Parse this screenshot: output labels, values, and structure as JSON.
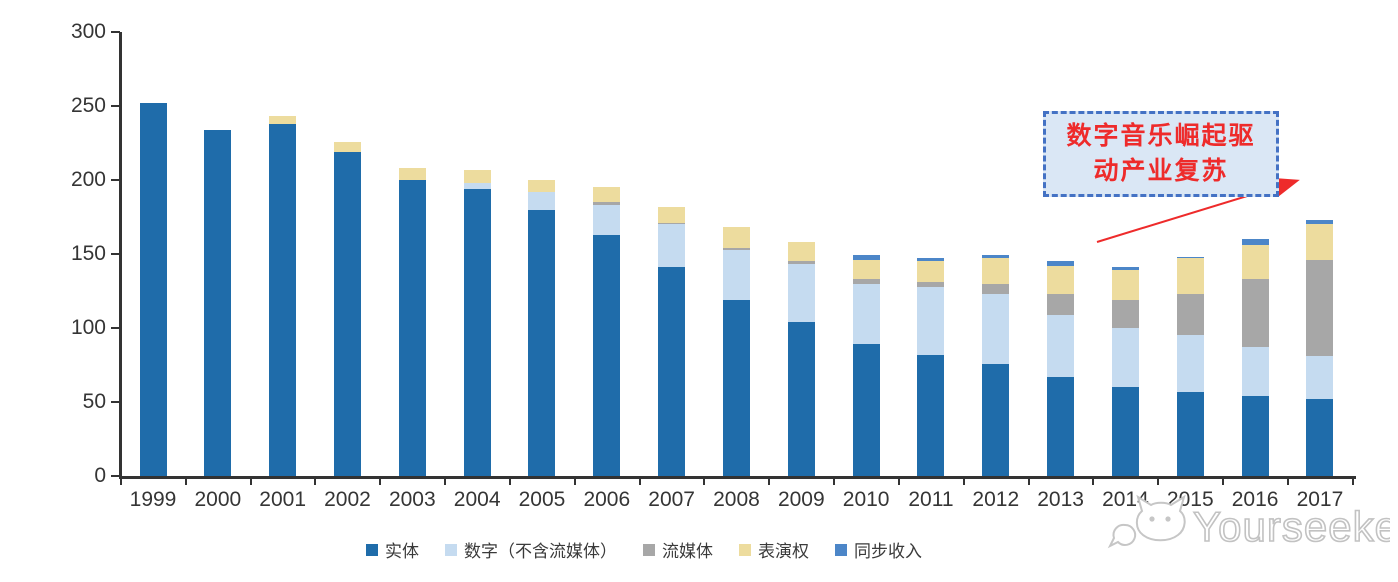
{
  "chart_data": {
    "type": "bar",
    "stacked": true,
    "categories": [
      "1999",
      "2000",
      "2001",
      "2002",
      "2003",
      "2004",
      "2005",
      "2006",
      "2007",
      "2008",
      "2009",
      "2010",
      "2011",
      "2012",
      "2013",
      "2014",
      "2015",
      "2016",
      "2017"
    ],
    "series": [
      {
        "name": "实体",
        "color": "#1F6CAA",
        "values": [
          252,
          234,
          238,
          219,
          200,
          194,
          180,
          163,
          141,
          119,
          104,
          89,
          82,
          76,
          67,
          60,
          57,
          54,
          52
        ]
      },
      {
        "name": "数字（不含流媒体）",
        "color": "#C5DBF0",
        "values": [
          0,
          0,
          0,
          0,
          0,
          4,
          12,
          20,
          29,
          34,
          39,
          41,
          46,
          47,
          42,
          40,
          38,
          33,
          29
        ]
      },
      {
        "name": "流媒体",
        "color": "#A7A7A7",
        "values": [
          0,
          0,
          0,
          0,
          0,
          0,
          0,
          2,
          1,
          1,
          2,
          3,
          3,
          7,
          14,
          19,
          28,
          46,
          65
        ]
      },
      {
        "name": "表演权",
        "color": "#EDDC9E",
        "values": [
          0,
          0,
          5,
          7,
          8,
          9,
          8,
          10,
          11,
          14,
          13,
          13,
          14,
          17,
          19,
          20,
          24,
          23,
          24
        ]
      },
      {
        "name": "同步收入",
        "color": "#4C86C8",
        "values": [
          0,
          0,
          0,
          0,
          0,
          0,
          0,
          0,
          0,
          0,
          0,
          3,
          2,
          2,
          3,
          2,
          1,
          4,
          3
        ]
      }
    ],
    "ylim": [
      0,
      300
    ],
    "yticks": [
      0,
      50,
      100,
      150,
      200,
      250,
      300
    ],
    "xlabel": "",
    "ylabel": "",
    "title": "",
    "grid": false,
    "legend_position": "bottom"
  },
  "axis": {
    "color": "#333333"
  },
  "annotation": {
    "line1": "数字音乐崛起驱",
    "line2": "动产业复苏",
    "text_color": "#EE2B2B",
    "border_color": "#4472C4",
    "fill_color": "#DAE7F5",
    "arrow_color": "#EE2B2B"
  },
  "watermark": {
    "text": "Yourseeker",
    "color": "#C6C6C6"
  }
}
